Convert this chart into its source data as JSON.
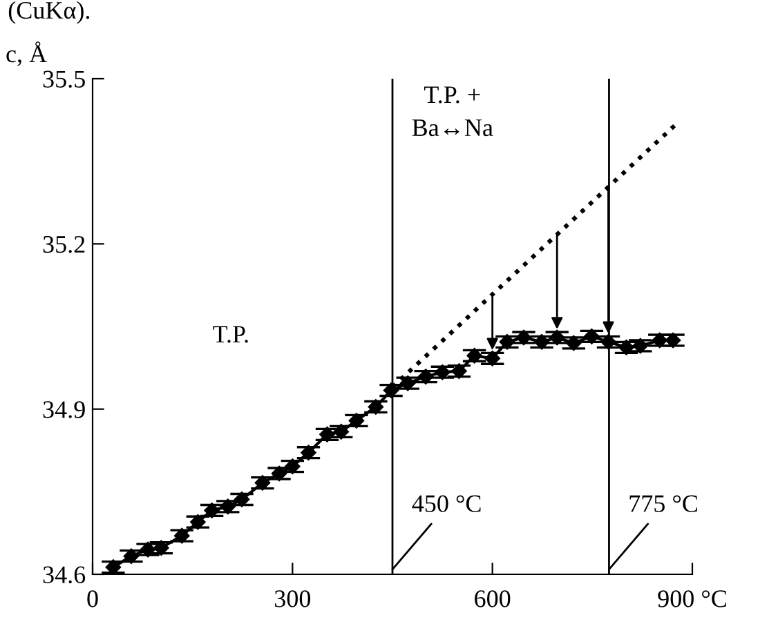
{
  "chart_data": {
    "type": "line",
    "ylabel": "c, Å",
    "xlim": [
      0,
      900
    ],
    "ylim": [
      34.6,
      35.5
    ],
    "xticks": [
      0,
      300,
      600,
      {
        "value": 900,
        "label": "900 °C"
      }
    ],
    "yticks": [
      34.6,
      34.9,
      35.2,
      35.5
    ],
    "grid": false,
    "legend": false,
    "annotations": [
      "(CuKα).",
      "T.P.",
      "T.P. +\nBa↔Na"
    ],
    "ref_lines": [
      {
        "axis": "x",
        "value": 450,
        "label": "450 °C",
        "color": "#000000"
      },
      {
        "axis": "x",
        "value": 775,
        "label": "775 °C",
        "color": "#000000"
      }
    ],
    "series": [
      {
        "color": "#000000",
        "marker": "diamond",
        "line_style": "solid",
        "x": [
          31,
          58,
          83,
          103,
          134,
          158,
          179,
          203,
          224,
          255,
          280,
          300,
          324,
          352,
          373,
          396,
          425,
          448,
          473,
          500,
          525,
          550,
          573,
          600,
          622,
          647,
          674,
          697,
          722,
          749,
          774,
          801,
          822,
          851,
          871
        ],
        "values": [
          34.613,
          34.633,
          34.645,
          34.648,
          34.67,
          34.695,
          34.716,
          34.723,
          34.736,
          34.766,
          34.783,
          34.796,
          34.821,
          34.854,
          34.859,
          34.879,
          34.904,
          34.934,
          34.947,
          34.959,
          34.967,
          34.969,
          34.997,
          34.992,
          35.022,
          35.03,
          35.022,
          35.03,
          35.02,
          35.032,
          35.022,
          35.012,
          35.015,
          35.025,
          35.025
        ],
        "errors": [
          0.01,
          0.01,
          0.01,
          0.01,
          0.01,
          0.01,
          0.01,
          0.01,
          0.01,
          0.01,
          0.01,
          0.01,
          0.01,
          0.01,
          0.01,
          0.01,
          0.01,
          0.01,
          0.01,
          0.01,
          0.01,
          0.01,
          0.01,
          0.01,
          0.01,
          0.01,
          0.01,
          0.01,
          0.01,
          0.01,
          0.01,
          0.01,
          0.01,
          0.01,
          0.01
        ]
      },
      {
        "color": "#000000",
        "marker": "none",
        "line_style": "dotted",
        "x": [
          450,
          878
        ],
        "values": [
          34.94,
          35.42
        ]
      }
    ]
  }
}
